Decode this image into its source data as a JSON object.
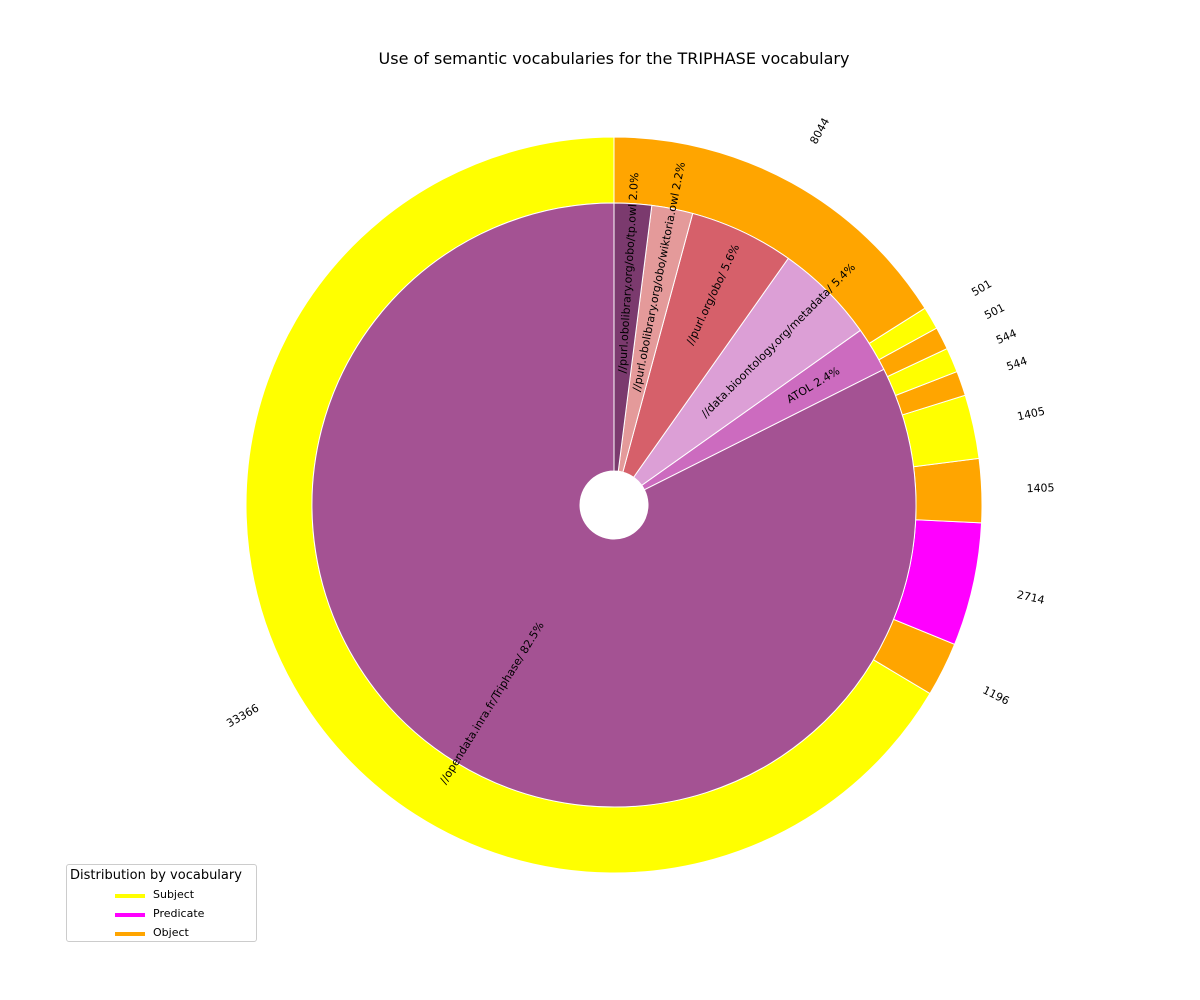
{
  "chart_data": {
    "type": "pie",
    "title": "Use of semantic vocabularies for the TRIPHASE vocabulary",
    "inner_ring": {
      "slices": [
        {
          "label": "//opendata.inra.fr/Triphase/",
          "pct_label": "82.5%",
          "value": 82.5,
          "color": "#a45293"
        },
        {
          "label": "ATOL",
          "pct_label": "2.4%",
          "value": 2.4,
          "color": "#cc6bbf"
        },
        {
          "label": "//data.bioontology.org/metadata/",
          "pct_label": "5.4%",
          "value": 5.4,
          "color": "#dc9fd6"
        },
        {
          "label": "//purl.org/obo/",
          "pct_label": "5.6%",
          "value": 5.6,
          "color": "#d6606a"
        },
        {
          "label": "//purl.obolibrary.org/obo/wiktoria.owl",
          "pct_label": "2.2%",
          "value": 2.2,
          "color": "#e49a9a"
        },
        {
          "label": "//purl.obolibrary.org/obo/tp.owl",
          "pct_label": "2.0%",
          "value": 2.0,
          "color": "#7b3a6e"
        }
      ]
    },
    "outer_ring": {
      "slices": [
        {
          "value": 33366,
          "label": "33366",
          "role": "Subject"
        },
        {
          "value": 1196,
          "label": "1196",
          "role": "Object"
        },
        {
          "value": 2714,
          "label": "2714",
          "role": "Predicate"
        },
        {
          "value": 1405,
          "label": "1405",
          "role": "Object"
        },
        {
          "value": 1405,
          "label": "1405",
          "role": "Subject"
        },
        {
          "value": 544,
          "label": "544",
          "role": "Object"
        },
        {
          "value": 544,
          "label": "544",
          "role": "Subject"
        },
        {
          "value": 501,
          "label": "501",
          "role": "Object"
        },
        {
          "value": 501,
          "label": "501",
          "role": "Subject"
        },
        {
          "value": 8044,
          "label": "8044",
          "role": "Object"
        }
      ]
    },
    "legend": {
      "title": "Distribution by vocabulary",
      "placement": "lower-left",
      "items": [
        {
          "label": "Subject",
          "color": "#ffff00"
        },
        {
          "label": "Predicate",
          "color": "#ff00ff"
        },
        {
          "label": "Object",
          "color": "#ffa500"
        }
      ]
    }
  }
}
